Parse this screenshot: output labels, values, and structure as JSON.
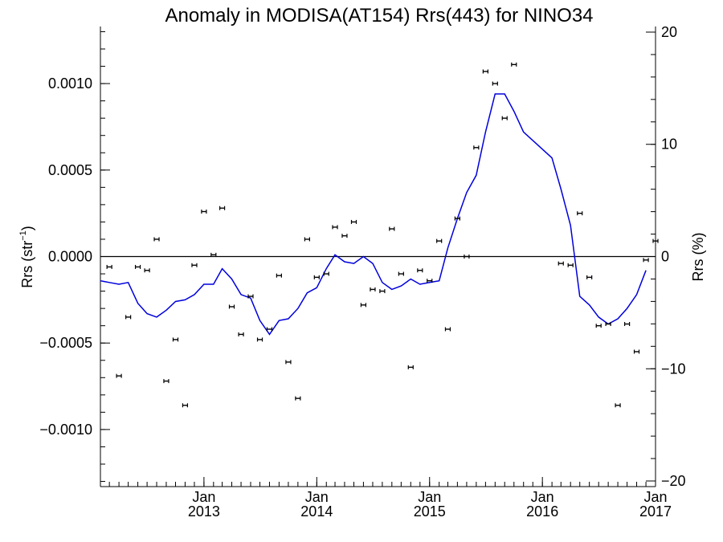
{
  "chart_data": {
    "type": "scatter",
    "title": "Anomaly in MODISA(AT154) Rrs(443) for NINO34",
    "ylabel_left_main": "Rrs (str",
    "ylabel_left_sup": "−1",
    "ylabel_left_end": ")",
    "ylabel_right": "Rrs (%)",
    "xlim": [
      "2012-02-01",
      "2017-01-01"
    ],
    "ylim_left": [
      -0.00133,
      0.00133
    ],
    "ylim_right": [
      -20.5,
      20.5
    ],
    "x_ticks": [
      {
        "date": "2013-01-01",
        "line1": "Jan",
        "line2": "2013"
      },
      {
        "date": "2014-01-01",
        "line1": "Jan",
        "line2": "2014"
      },
      {
        "date": "2015-01-01",
        "line1": "Jan",
        "line2": "2015"
      },
      {
        "date": "2016-01-01",
        "line1": "Jan",
        "line2": "2016"
      },
      {
        "date": "2017-01-01",
        "line1": "Jan",
        "line2": "2017"
      }
    ],
    "y_ticks_left": [
      {
        "value": 0.001,
        "label": "0.0010"
      },
      {
        "value": 0.0005,
        "label": "0.0005"
      },
      {
        "value": 0.0,
        "label": "0.0000"
      },
      {
        "value": -0.0005,
        "label": "−0.0005"
      },
      {
        "value": -0.001,
        "label": "−0.0010"
      }
    ],
    "y_ticks_right": [
      {
        "value": 20,
        "label": "20"
      },
      {
        "value": 10,
        "label": "10"
      },
      {
        "value": 0,
        "label": "0"
      },
      {
        "value": -10,
        "label": "−10"
      },
      {
        "value": -20,
        "label": "−20"
      }
    ],
    "reference_line": 0,
    "series": [
      {
        "style": "points-with-errorbars",
        "color": "#000000",
        "points": [
          {
            "date": "2012-03-01",
            "y": -6e-05
          },
          {
            "date": "2012-04-01",
            "y": -0.00069
          },
          {
            "date": "2012-05-01",
            "y": -0.00035
          },
          {
            "date": "2012-06-01",
            "y": -6e-05
          },
          {
            "date": "2012-07-01",
            "y": -8e-05
          },
          {
            "date": "2012-08-01",
            "y": 0.0001
          },
          {
            "date": "2012-09-01",
            "y": -0.00072
          },
          {
            "date": "2012-10-01",
            "y": -0.00048
          },
          {
            "date": "2012-11-01",
            "y": -0.00086
          },
          {
            "date": "2012-12-01",
            "y": -5e-05
          },
          {
            "date": "2013-01-01",
            "y": 0.00026
          },
          {
            "date": "2013-02-01",
            "y": 1e-05
          },
          {
            "date": "2013-03-01",
            "y": 0.00028
          },
          {
            "date": "2013-04-01",
            "y": -0.00029
          },
          {
            "date": "2013-05-01",
            "y": -0.00045
          },
          {
            "date": "2013-06-01",
            "y": -0.00023
          },
          {
            "date": "2013-07-01",
            "y": -0.00048
          },
          {
            "date": "2013-08-01",
            "y": -0.00042
          },
          {
            "date": "2013-09-01",
            "y": -0.00011
          },
          {
            "date": "2013-10-01",
            "y": -0.00061
          },
          {
            "date": "2013-11-01",
            "y": -0.00082
          },
          {
            "date": "2013-12-01",
            "y": 0.0001
          },
          {
            "date": "2014-01-01",
            "y": -0.00012
          },
          {
            "date": "2014-02-01",
            "y": -0.0001
          },
          {
            "date": "2014-03-01",
            "y": 0.00017
          },
          {
            "date": "2014-04-01",
            "y": 0.00012
          },
          {
            "date": "2014-05-01",
            "y": 0.0002
          },
          {
            "date": "2014-06-01",
            "y": -0.00028
          },
          {
            "date": "2014-07-01",
            "y": -0.00019
          },
          {
            "date": "2014-08-01",
            "y": -0.0002
          },
          {
            "date": "2014-09-01",
            "y": 0.00016
          },
          {
            "date": "2014-10-01",
            "y": -0.0001
          },
          {
            "date": "2014-11-01",
            "y": -0.00064
          },
          {
            "date": "2014-12-01",
            "y": -8e-05
          },
          {
            "date": "2015-01-01",
            "y": -0.00014
          },
          {
            "date": "2015-02-01",
            "y": 9e-05
          },
          {
            "date": "2015-03-01",
            "y": -0.00042
          },
          {
            "date": "2015-04-01",
            "y": 0.00022
          },
          {
            "date": "2015-05-01",
            "y": 0.0
          },
          {
            "date": "2015-06-01",
            "y": 0.00063
          },
          {
            "date": "2015-07-01",
            "y": 0.00107
          },
          {
            "date": "2015-08-01",
            "y": 0.001
          },
          {
            "date": "2015-09-01",
            "y": 0.0008
          },
          {
            "date": "2015-10-01",
            "y": 0.00111
          },
          {
            "date": "2016-03-01",
            "y": -4e-05
          },
          {
            "date": "2016-04-01",
            "y": -5e-05
          },
          {
            "date": "2016-05-01",
            "y": 0.00025
          },
          {
            "date": "2016-06-01",
            "y": -0.00012
          },
          {
            "date": "2016-07-01",
            "y": -0.0004
          },
          {
            "date": "2016-08-01",
            "y": -0.00039
          },
          {
            "date": "2016-09-01",
            "y": -0.00086
          },
          {
            "date": "2016-10-01",
            "y": -0.00039
          },
          {
            "date": "2016-11-01",
            "y": -0.00055
          },
          {
            "date": "2016-12-01",
            "y": -2e-05
          },
          {
            "date": "2017-01-01",
            "y": 9e-05
          }
        ]
      },
      {
        "style": "line",
        "color": "#0000dd",
        "points": [
          {
            "date": "2012-02-01",
            "y": -0.00014
          },
          {
            "date": "2012-03-01",
            "y": -0.00015
          },
          {
            "date": "2012-04-01",
            "y": -0.00016
          },
          {
            "date": "2012-05-01",
            "y": -0.00015
          },
          {
            "date": "2012-06-01",
            "y": -0.00027
          },
          {
            "date": "2012-07-01",
            "y": -0.00033
          },
          {
            "date": "2012-08-01",
            "y": -0.00035
          },
          {
            "date": "2012-09-01",
            "y": -0.00031
          },
          {
            "date": "2012-10-01",
            "y": -0.00026
          },
          {
            "date": "2012-11-01",
            "y": -0.00025
          },
          {
            "date": "2012-12-01",
            "y": -0.00022
          },
          {
            "date": "2013-01-01",
            "y": -0.00016
          },
          {
            "date": "2013-02-01",
            "y": -0.00016
          },
          {
            "date": "2013-03-01",
            "y": -7e-05
          },
          {
            "date": "2013-04-01",
            "y": -0.00013
          },
          {
            "date": "2013-05-01",
            "y": -0.00022
          },
          {
            "date": "2013-06-01",
            "y": -0.00024
          },
          {
            "date": "2013-07-01",
            "y": -0.00037
          },
          {
            "date": "2013-08-01",
            "y": -0.00045
          },
          {
            "date": "2013-09-01",
            "y": -0.00037
          },
          {
            "date": "2013-10-01",
            "y": -0.00036
          },
          {
            "date": "2013-11-01",
            "y": -0.0003
          },
          {
            "date": "2013-12-01",
            "y": -0.00021
          },
          {
            "date": "2014-01-01",
            "y": -0.00018
          },
          {
            "date": "2014-02-01",
            "y": -7e-05
          },
          {
            "date": "2014-03-01",
            "y": 1e-05
          },
          {
            "date": "2014-04-01",
            "y": -3e-05
          },
          {
            "date": "2014-05-01",
            "y": -4e-05
          },
          {
            "date": "2014-06-01",
            "y": 0.0
          },
          {
            "date": "2014-07-01",
            "y": -4e-05
          },
          {
            "date": "2014-08-01",
            "y": -0.00015
          },
          {
            "date": "2014-09-01",
            "y": -0.00019
          },
          {
            "date": "2014-10-01",
            "y": -0.00017
          },
          {
            "date": "2014-11-01",
            "y": -0.00013
          },
          {
            "date": "2014-12-01",
            "y": -0.00016
          },
          {
            "date": "2015-01-01",
            "y": -0.00015
          },
          {
            "date": "2015-02-01",
            "y": -0.00014
          },
          {
            "date": "2015-03-01",
            "y": 5e-05
          },
          {
            "date": "2015-04-01",
            "y": 0.00022
          },
          {
            "date": "2015-05-01",
            "y": 0.00037
          },
          {
            "date": "2015-06-01",
            "y": 0.00047
          },
          {
            "date": "2015-07-01",
            "y": 0.00072
          },
          {
            "date": "2015-08-01",
            "y": 0.00094
          },
          {
            "date": "2015-09-01",
            "y": 0.00094
          },
          {
            "date": "2015-10-01",
            "y": 0.00084
          },
          {
            "date": "2015-11-01",
            "y": 0.00072
          },
          {
            "date": "2016-02-01",
            "y": 0.00057
          },
          {
            "date": "2016-03-01",
            "y": 0.00039
          },
          {
            "date": "2016-04-01",
            "y": 0.00018
          },
          {
            "date": "2016-05-01",
            "y": -0.00023
          },
          {
            "date": "2016-06-01",
            "y": -0.00028
          },
          {
            "date": "2016-07-01",
            "y": -0.00035
          },
          {
            "date": "2016-08-01",
            "y": -0.00039
          },
          {
            "date": "2016-09-01",
            "y": -0.00036
          },
          {
            "date": "2016-10-01",
            "y": -0.0003
          },
          {
            "date": "2016-11-01",
            "y": -0.00022
          },
          {
            "date": "2016-12-01",
            "y": -8e-05
          }
        ]
      }
    ]
  }
}
